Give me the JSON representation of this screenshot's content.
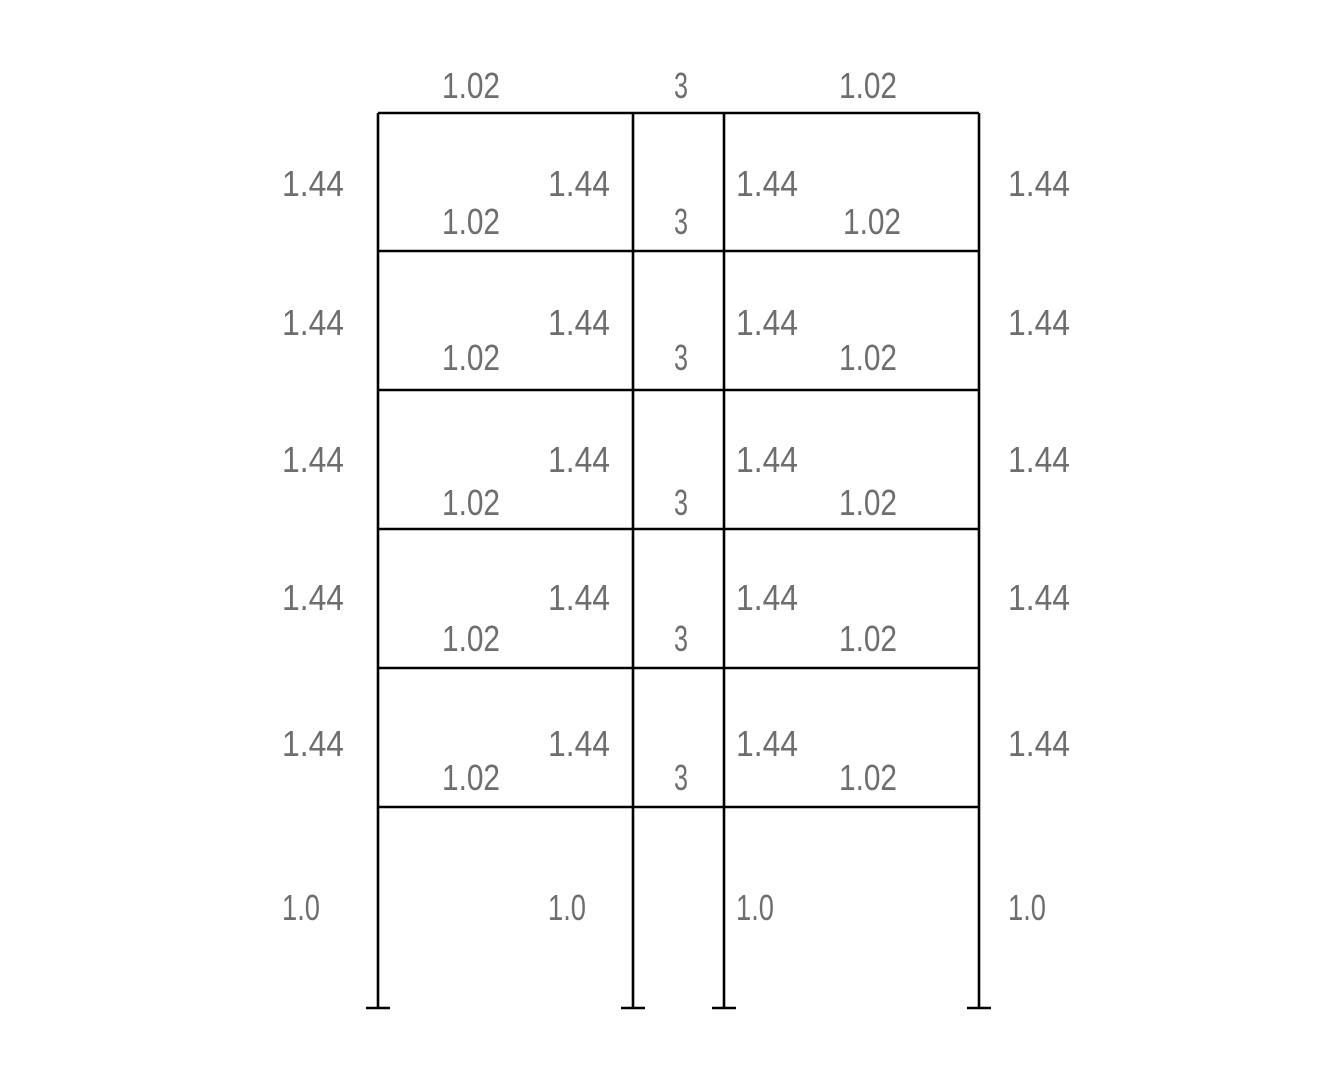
{
  "beam_levels": [
    {
      "spans": [
        "1.02",
        "3",
        "1.02"
      ]
    },
    {
      "spans": [
        "1.02",
        "3",
        "1.02"
      ]
    },
    {
      "spans": [
        "1.02",
        "3",
        "1.02"
      ]
    },
    {
      "spans": [
        "1.02",
        "3",
        "1.02"
      ]
    },
    {
      "spans": [
        "1.02",
        "3",
        "1.02"
      ]
    },
    {
      "spans": [
        "1.02",
        "3",
        "1.02"
      ]
    }
  ],
  "column_stories": [
    {
      "columns": [
        "1.44",
        "1.44",
        "1.44",
        "1.44"
      ]
    },
    {
      "columns": [
        "1.44",
        "1.44",
        "1.44",
        "1.44"
      ]
    },
    {
      "columns": [
        "1.44",
        "1.44",
        "1.44",
        "1.44"
      ]
    },
    {
      "columns": [
        "1.44",
        "1.44",
        "1.44",
        "1.44"
      ]
    },
    {
      "columns": [
        "1.44",
        "1.44",
        "1.44",
        "1.44"
      ]
    },
    {
      "columns": [
        "1.0",
        "1.0",
        "1.0",
        "1.0"
      ]
    }
  ],
  "supports": "fixed",
  "colors": {
    "members": "#000000",
    "labels": "#6e6e6e"
  }
}
